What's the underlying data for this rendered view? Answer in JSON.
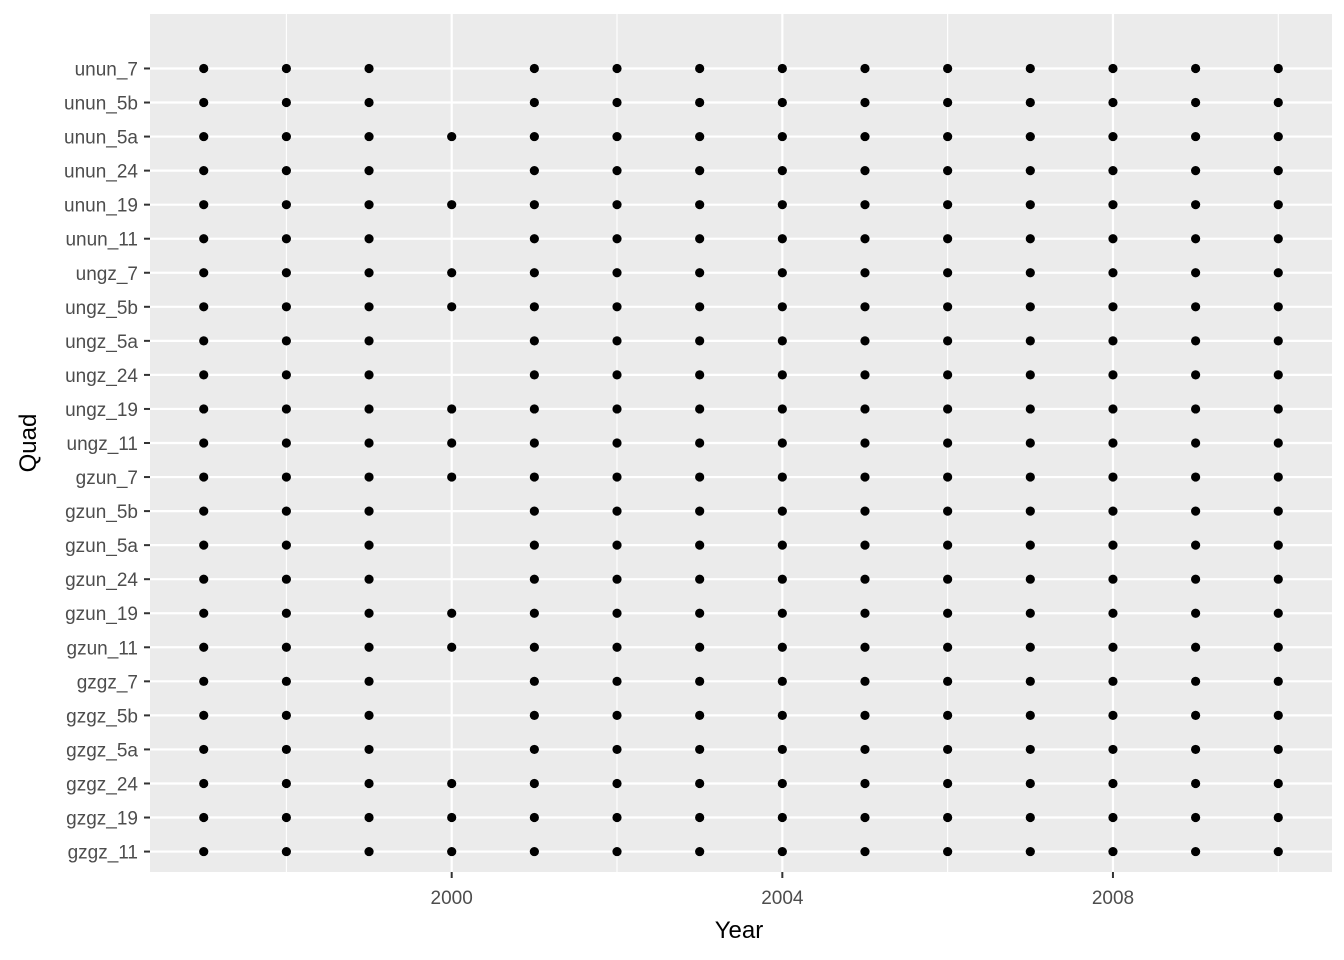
{
  "chart_data": {
    "type": "scatter",
    "xlabel": "Year",
    "ylabel": "Quad",
    "xlim": [
      1996.35,
      2010.65
    ],
    "x_ticks": [
      2000,
      2004,
      2008
    ],
    "y_categories": [
      "gzgz_11",
      "gzgz_19",
      "gzgz_24",
      "gzgz_5a",
      "gzgz_5b",
      "gzgz_7",
      "gzun_11",
      "gzun_19",
      "gzun_24",
      "gzun_5a",
      "gzun_5b",
      "gzun_7",
      "ungz_11",
      "ungz_19",
      "ungz_24",
      "ungz_5a",
      "ungz_5b",
      "ungz_7",
      "unun_11",
      "unun_19",
      "unun_24",
      "unun_5a",
      "unun_5b",
      "unun_7"
    ],
    "years": [
      1997,
      1998,
      1999,
      2000,
      2001,
      2002,
      2003,
      2004,
      2005,
      2006,
      2007,
      2008,
      2009,
      2010
    ],
    "quads_with_2000": [
      "gzgz_24",
      "gzgz_19",
      "gzgz_11",
      "gzun_19",
      "gzun_11",
      "ungz_7",
      "ungz_5b",
      "ungz_19",
      "ungz_11",
      "gzun_7",
      "unun_5a",
      "unun_19"
    ],
    "grid": true,
    "legend": "none",
    "colors": {
      "panel": "#ebebeb",
      "grid": "#ffffff",
      "point": "#000000",
      "tick": "#333333"
    }
  }
}
